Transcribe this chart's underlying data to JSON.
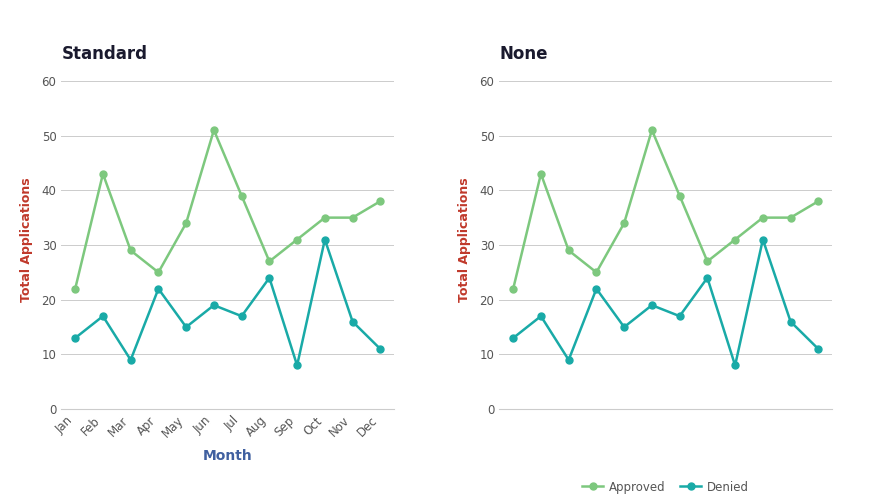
{
  "months": [
    "Jan",
    "Feb",
    "Mar",
    "Apr",
    "May",
    "Jun",
    "Jul",
    "Aug",
    "Sep",
    "Oct",
    "Nov",
    "Dec"
  ],
  "approved": [
    22,
    43,
    29,
    25,
    34,
    51,
    39,
    27,
    31,
    35,
    35,
    38
  ],
  "denied": [
    13,
    17,
    9,
    22,
    15,
    19,
    17,
    24,
    8,
    31,
    16,
    11
  ],
  "title_left": "Standard",
  "title_right": "None",
  "ylabel": "Total Applications",
  "xlabel": "Month",
  "ylim": [
    0,
    62
  ],
  "yticks": [
    0,
    10,
    20,
    30,
    40,
    50,
    60
  ],
  "color_approved": "#7dc87e",
  "color_denied": "#19aaa7",
  "bg_color": "#ffffff",
  "grid_color": "#cccccc",
  "title_color": "#1a1a2e",
  "axis_label_color": "#d94f3d",
  "ylabel_right_color": "#555555",
  "tick_color": "#555555"
}
